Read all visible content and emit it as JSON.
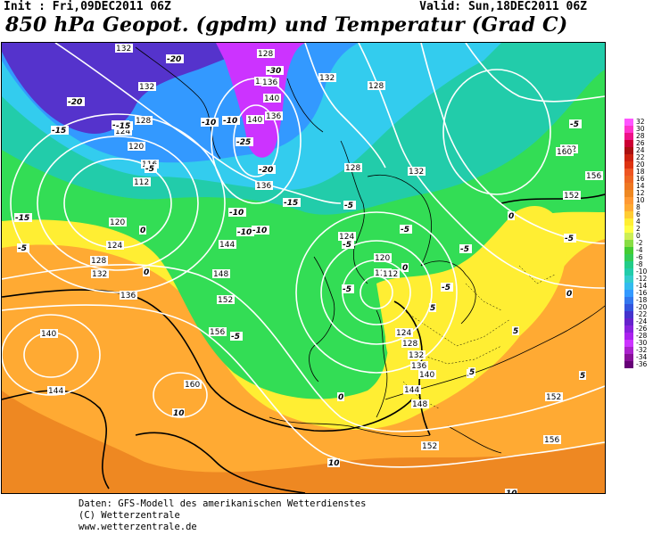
{
  "header": {
    "init": "Init : Fri,09DEC2011 06Z",
    "valid": "Valid: Sun,18DEC2011 06Z",
    "title": "850 hPa Geopot. (gpdm) und Temperatur (Grad C)"
  },
  "map": {
    "fill_colors": {
      "magenta": "#cc33ff",
      "blue": "#3399ff",
      "cyan": "#33ccee",
      "teal": "#22ccaa",
      "green": "#33dd55",
      "yellow": "#ffee33",
      "orange": "#ffaa33",
      "dark_orange": "#ee8822"
    },
    "geopotential_labels": [
      "132",
      "128",
      "136",
      "132",
      "132",
      "128",
      "128",
      "124",
      "120",
      "116",
      "112",
      "136",
      "140",
      "136",
      "140",
      "136",
      "128",
      "132",
      "132",
      "156",
      "152",
      "160",
      "120",
      "124",
      "128",
      "132",
      "124",
      "120",
      "116",
      "112",
      "144",
      "148",
      "152",
      "156",
      "136",
      "140",
      "144",
      "160",
      "124",
      "128",
      "132",
      "136",
      "140",
      "144",
      "148",
      "152",
      "152",
      "156"
    ],
    "temperature_labels": [
      "-20",
      "-30",
      "-10",
      "-20",
      "-20",
      "-15",
      "-5",
      "-10",
      "-15",
      "-25",
      "-20",
      "-15",
      "-10",
      "-10",
      "-15",
      "-5",
      "-5",
      "-5",
      "-5",
      "-5",
      "0",
      "0",
      "-5",
      "-5",
      "-5",
      "0",
      "-5",
      "0",
      "5",
      "0",
      "5",
      "5",
      "10",
      "5",
      "5",
      "10",
      "10",
      "0",
      "-5",
      "-10"
    ]
  },
  "legend": {
    "values": [
      "32",
      "30",
      "28",
      "26",
      "24",
      "22",
      "20",
      "18",
      "16",
      "14",
      "12",
      "10",
      "8",
      "6",
      "4",
      "2",
      "0",
      "-2",
      "-4",
      "-6",
      "-8",
      "-10",
      "-12",
      "-14",
      "-16",
      "-18",
      "-20",
      "-22",
      "-24",
      "-26",
      "-28",
      "-30",
      "-32",
      "-34",
      "-36"
    ],
    "colors": [
      "#ff55ff",
      "#ff33cc",
      "#ee1188",
      "#cc0033",
      "#aa1111",
      "#cc2211",
      "#dd3311",
      "#ee5522",
      "#ee6622",
      "#ee7722",
      "#ee8822",
      "#ff9933",
      "#ffaa33",
      "#ffcc33",
      "#ffee33",
      "#ffff44",
      "#ccee55",
      "#88dd44",
      "#44cc33",
      "#33cc55",
      "#22cc88",
      "#22ccaa",
      "#33cccc",
      "#33bbee",
      "#3399ff",
      "#3377ee",
      "#3355dd",
      "#4433cc",
      "#6622cc",
      "#8822dd",
      "#aa22ee",
      "#cc33ff",
      "#aa22cc",
      "#881199",
      "#660077"
    ]
  },
  "footer": {
    "line1": "Daten: GFS-Modell des amerikanischen Wetterdienstes",
    "line2": "(C) Wetterzentrale",
    "line3": "www.wetterzentrale.de"
  }
}
